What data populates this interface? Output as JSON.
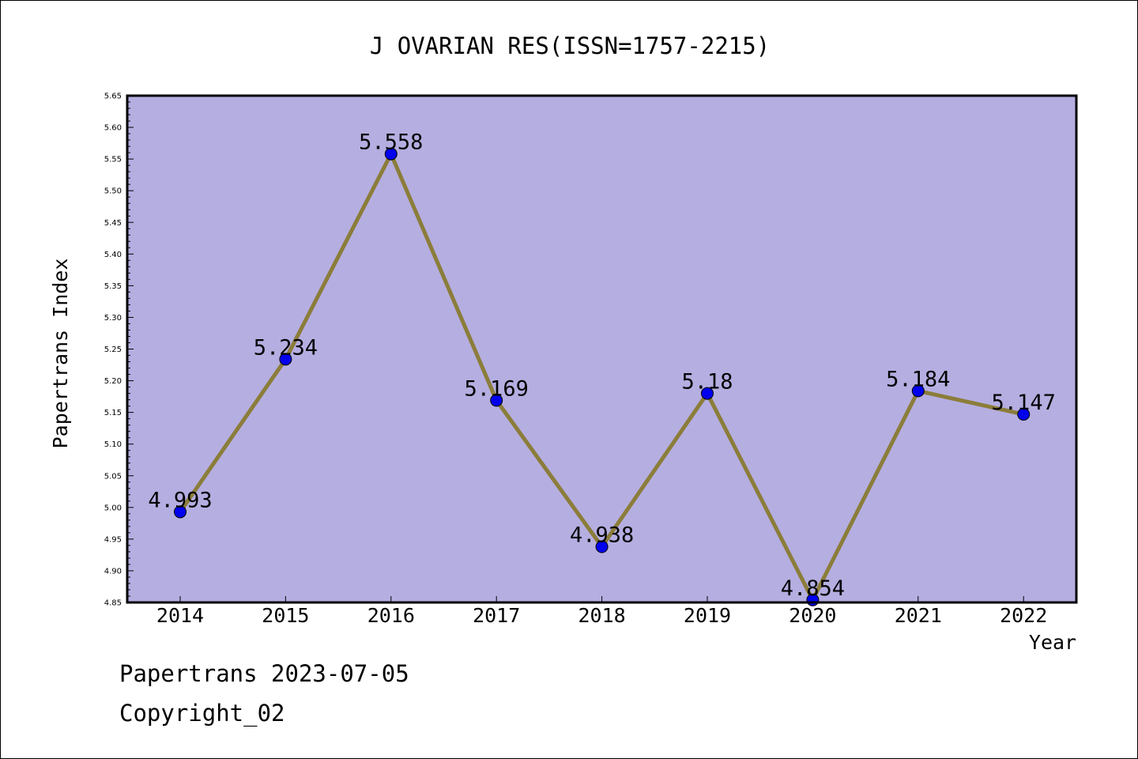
{
  "footer": {
    "date_line": "Papertrans 2023-07-05",
    "copyright_line": "Copyright_02"
  },
  "colors": {
    "plot_background": "#b5aee1",
    "line": "#8b7d3a",
    "marker": "#0000ee"
  },
  "chart_data": {
    "type": "line",
    "title": "J OVARIAN RES(ISSN=1757-2215)",
    "xlabel": "Year",
    "ylabel": "Papertrans Index",
    "categories": [
      "2014",
      "2015",
      "2016",
      "2017",
      "2018",
      "2019",
      "2020",
      "2021",
      "2022"
    ],
    "series": [
      {
        "values": [
          4.993,
          5.234,
          5.558,
          5.169,
          4.938,
          5.18,
          4.854,
          5.184,
          5.147
        ],
        "labels": [
          "4.993",
          "5.234",
          "5.558",
          "5.169",
          "4.938",
          "5.18",
          "4.854",
          "5.184",
          "5.147"
        ]
      }
    ],
    "ylim": [
      4.85,
      5.65
    ],
    "yticks": [
      "4.85",
      "4.90",
      "4.95",
      "5.00",
      "5.05",
      "5.10",
      "5.15",
      "5.20",
      "5.25",
      "5.30",
      "5.35",
      "5.40",
      "5.45",
      "5.50",
      "5.55",
      "5.60",
      "5.65"
    ],
    "grid": false,
    "legend": "none"
  }
}
